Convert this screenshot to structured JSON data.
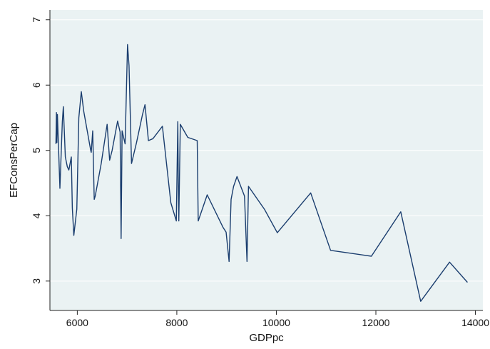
{
  "header_fragment": "",
  "chart_data": {
    "type": "line",
    "title": "",
    "xlabel": "GDPpc",
    "ylabel": "EFConsPerCap",
    "xlim": [
      5450,
      14150
    ],
    "ylim": [
      2.55,
      7.15
    ],
    "x_ticks": [
      6000,
      8000,
      10000,
      12000,
      14000
    ],
    "x_tick_labels": [
      "6000",
      "8000",
      "10000",
      "12000",
      "14000"
    ],
    "y_ticks": [
      3,
      4,
      5,
      6,
      7
    ],
    "y_tick_labels": [
      "3",
      "4",
      "5",
      "6",
      "7"
    ],
    "grid": "horizontal",
    "legend": "none",
    "line_color": "#1a3d6e",
    "background_color": "#eaf2f3",
    "series": [
      {
        "x": [
          5570,
          5580,
          5590,
          5600,
          5650,
          5700,
          5720,
          5760,
          5800,
          5830,
          5880,
          5900,
          5930,
          5960,
          5990,
          6030,
          6080,
          6130,
          6270,
          6280,
          6310,
          6340,
          6360,
          6480,
          6600,
          6650,
          6700,
          6810,
          6860,
          6880,
          6900,
          6960,
          7010,
          7040,
          7090,
          7190,
          7310,
          7360,
          7430,
          7520,
          7710,
          7880,
          7990,
          8020,
          8030,
          8040,
          8070,
          8220,
          8410,
          8430,
          8610,
          8930,
          8990,
          9050,
          9090,
          9140,
          9210,
          9360,
          9410,
          9440,
          9760,
          10020,
          10690,
          11090,
          11910,
          12500,
          12900,
          13480,
          13840
        ],
        "y": [
          5.1,
          5.58,
          5.12,
          5.55,
          4.42,
          5.44,
          5.67,
          4.9,
          4.75,
          4.7,
          4.9,
          4.12,
          3.7,
          3.9,
          4.1,
          5.5,
          5.9,
          5.6,
          5.0,
          4.97,
          5.3,
          4.25,
          4.3,
          4.8,
          5.4,
          4.85,
          5.0,
          5.45,
          5.28,
          3.65,
          5.3,
          5.1,
          6.62,
          6.3,
          4.8,
          5.12,
          5.55,
          5.7,
          5.15,
          5.18,
          5.37,
          4.2,
          3.92,
          5.44,
          4.5,
          3.92,
          5.4,
          5.2,
          5.15,
          3.92,
          4.32,
          3.82,
          3.75,
          3.3,
          4.25,
          4.45,
          4.6,
          4.3,
          3.3,
          4.45,
          4.1,
          3.74,
          4.35,
          3.47,
          3.38,
          4.06,
          2.69,
          3.29,
          2.98
        ]
      }
    ]
  }
}
